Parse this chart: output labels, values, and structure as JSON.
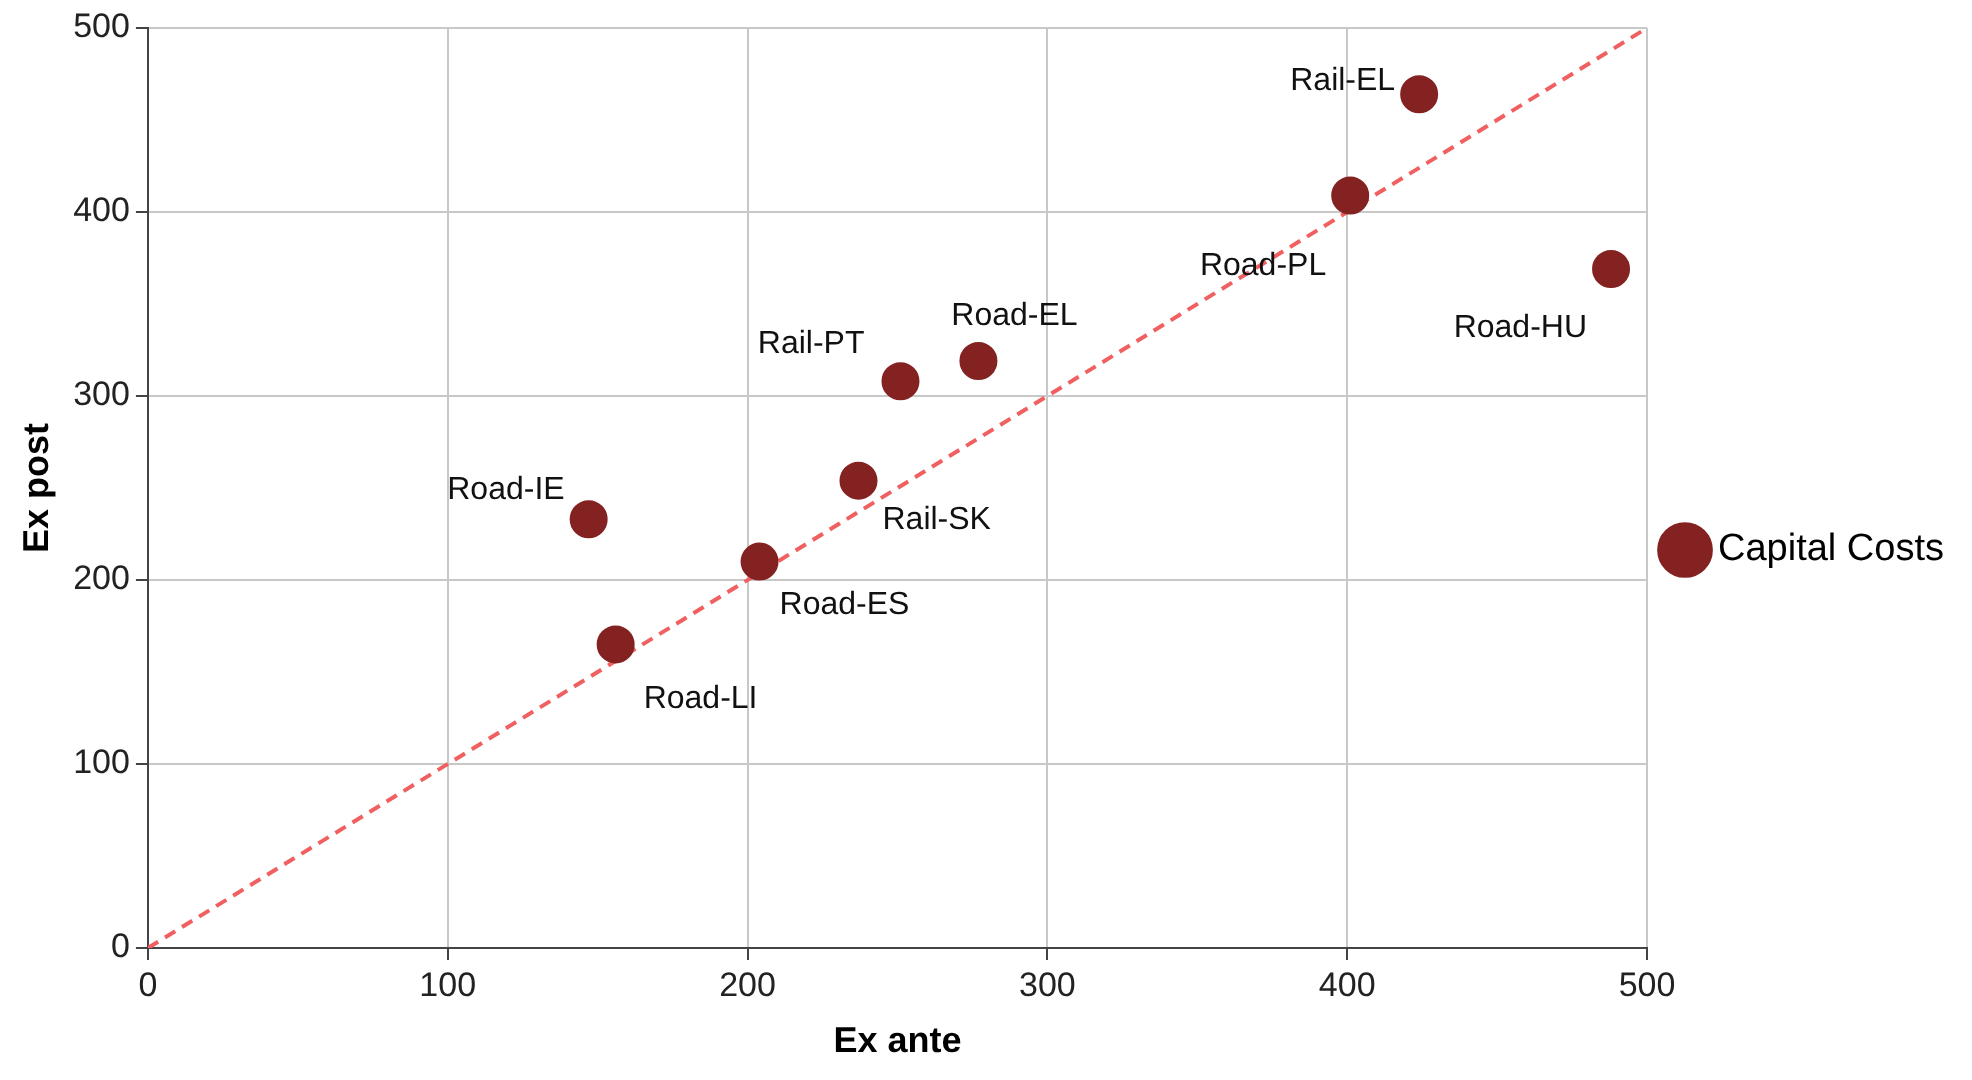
{
  "chart_data": {
    "type": "scatter",
    "xlabel": "Ex ante",
    "ylabel": "Ex post",
    "xlim": [
      0,
      500
    ],
    "xticks": [
      0,
      100,
      200,
      300,
      400,
      500
    ],
    "ylim": [
      0,
      500
    ],
    "yticks": [
      0,
      100,
      200,
      300,
      400,
      500
    ],
    "grid": true,
    "legend": "right",
    "marker": "circle",
    "series": [
      {
        "name": "Capital Costs",
        "color": "#842222",
        "x": [
          424,
          401,
          488,
          277,
          251,
          237,
          147,
          204,
          156
        ],
        "values": [
          464,
          409,
          369,
          319,
          308,
          254,
          233,
          210,
          165
        ]
      },
      {
        "type": "line",
        "color": "#f06060",
        "line_style": "dashed",
        "marker": "none",
        "x": [
          0,
          500
        ],
        "values": [
          0,
          500
        ]
      }
    ],
    "annotations": [
      {
        "text": "Rail-EL",
        "x": 424,
        "y": 464
      },
      {
        "text": "Road-PL",
        "x": 401,
        "y": 409
      },
      {
        "text": "Road-HU",
        "x": 488,
        "y": 369
      },
      {
        "text": "Road-EL",
        "x": 277,
        "y": 319
      },
      {
        "text": "Rail-PT",
        "x": 251,
        "y": 308
      },
      {
        "text": "Rail-SK",
        "x": 237,
        "y": 254
      },
      {
        "text": "Road-IE",
        "x": 147,
        "y": 233
      },
      {
        "text": "Road-ES",
        "x": 204,
        "y": 210
      },
      {
        "text": "Road-LI",
        "x": 156,
        "y": 165
      }
    ]
  }
}
